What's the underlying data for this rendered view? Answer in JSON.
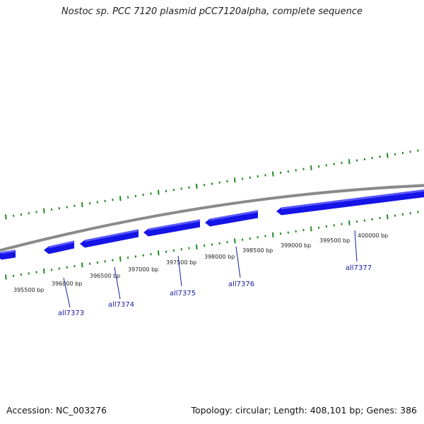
{
  "title": "Nostoc sp. PCC 7120 plasmid pCC7120alpha, complete sequence",
  "footer": {
    "accession_label": "Accession: NC_003276",
    "summary": "Topology: circular; Length: 408,101 bp; Genes: 386"
  },
  "colors": {
    "backbone": "#8a8a8a",
    "gene_fill": "#1414e6",
    "gene_highlight": "#5a5aff",
    "tick": "#1f8a1f",
    "gene_label": "#1a1aa6"
  },
  "scale_labels": [
    "395500 bp",
    "396000 bp",
    "396500 bp",
    "397000 bp",
    "397500 bp",
    "398000 bp",
    "398500 bp",
    "399000 bp",
    "399500 bp",
    "400000 bp"
  ],
  "gene_labels": [
    "all7373",
    "all7374",
    "all7375",
    "all7376",
    "all7377"
  ]
}
